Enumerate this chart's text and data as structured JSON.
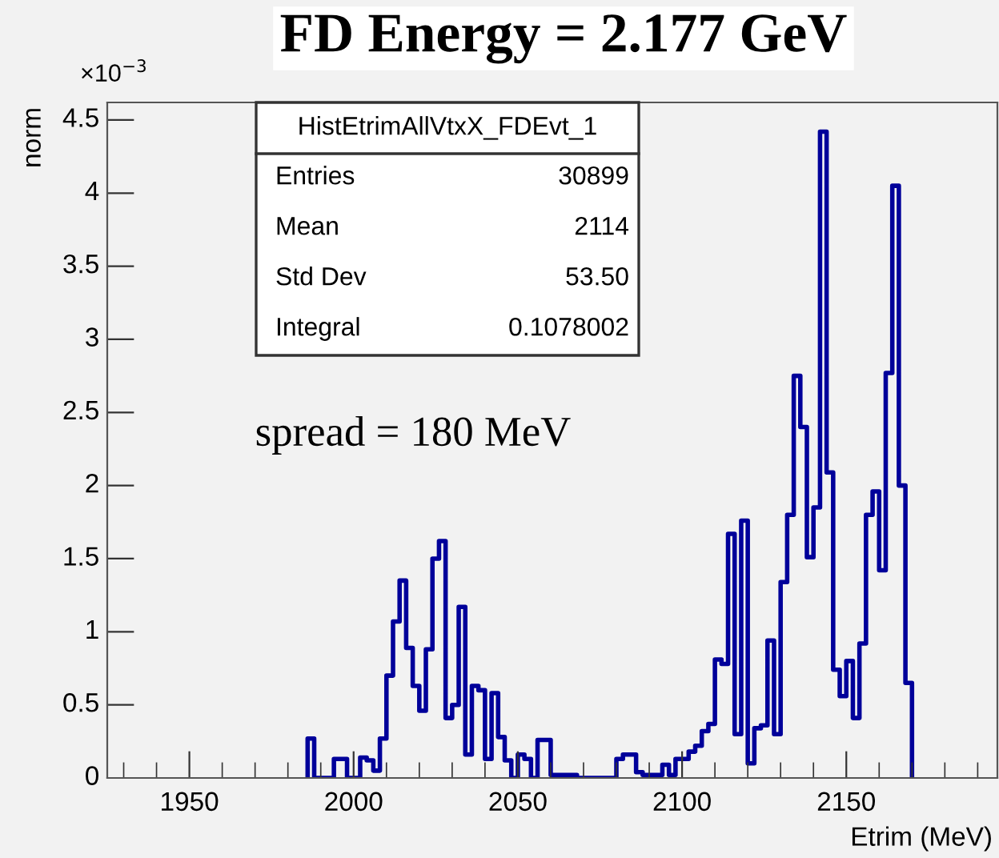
{
  "chart_data": {
    "type": "histogram",
    "title": "FD Energy = 2.177 GeV",
    "xlabel": "Etrim (MeV)",
    "ylabel": "norm",
    "annotations": [
      "×10$^{−3}$",
      "HistEtrimAllVtxX_FDEvt_1",
      "Entries",
      "30899",
      "Mean",
      "2114",
      "Std Dev",
      "53.50",
      "Integral",
      "0.1078002",
      "spread = 180 MeV"
    ],
    "color": "#00009a",
    "bins": [
      1986,
      1988,
      1990,
      1992,
      1994,
      1996,
      1998,
      2000,
      2002,
      2004,
      2006,
      2008,
      2010,
      2012,
      2014,
      2016,
      2018,
      2020,
      2022,
      2024,
      2026,
      2028,
      2030,
      2032,
      2034,
      2036,
      2038,
      2040,
      2042,
      2044,
      2046,
      2048,
      2050,
      2052,
      2054,
      2056,
      2058,
      2060,
      2062,
      2064,
      2066,
      2068,
      2070,
      2072,
      2074,
      2076,
      2078,
      2080,
      2082,
      2084,
      2086,
      2088,
      2090,
      2092,
      2094,
      2096,
      2098,
      2100,
      2102,
      2104,
      2106,
      2108,
      2110,
      2112,
      2114,
      2116,
      2118,
      2120,
      2122,
      2124,
      2126,
      2128,
      2130,
      2132,
      2134,
      2136,
      2138,
      2140,
      2142,
      2144,
      2146,
      2148,
      2150,
      2152,
      2154,
      2156,
      2158,
      2160,
      2162,
      2164,
      2166,
      2168,
      2170
    ],
    "values": [
      0.27,
      0,
      0,
      0,
      0.13,
      0.13,
      0,
      0,
      0.14,
      0.12,
      0.05,
      0.27,
      0.7,
      1.07,
      1.35,
      0.89,
      0.63,
      0.46,
      0.88,
      1.5,
      1.62,
      0.41,
      0.5,
      1.17,
      0.16,
      0.63,
      0.6,
      0.13,
      0.58,
      0.28,
      0.12,
      0,
      0.16,
      0.13,
      0,
      0.26,
      0.26,
      0.02,
      0.02,
      0.02,
      0.02,
      0,
      0,
      0,
      0,
      0,
      0,
      0.13,
      0.16,
      0.16,
      0.04,
      0.02,
      0.02,
      0.02,
      0.09,
      0.02,
      0.13,
      0.13,
      0.18,
      0.22,
      0.32,
      0.37,
      0.81,
      0.78,
      1.67,
      0.3,
      1.76,
      0.1,
      0.34,
      0.36,
      0.94,
      0.3,
      1.34,
      1.8,
      2.75,
      2.4,
      1.51,
      1.85,
      4.42,
      2.09,
      0.74,
      0.56,
      0.8,
      0.41,
      0.92,
      1.8,
      1.96,
      1.42,
      2.77,
      4.05,
      2.0,
      0.65
    ],
    "xlim": [
      1925,
      2196
    ],
    "xticks": [
      {
        "value": 1930,
        "label": null
      },
      {
        "value": 1940,
        "label": null
      },
      1950,
      {
        "value": 1960,
        "label": null
      },
      {
        "value": 1970,
        "label": null
      },
      {
        "value": 1980,
        "label": null
      },
      {
        "value": 1990,
        "label": null
      },
      2000,
      {
        "value": 2010,
        "label": null
      },
      {
        "value": 2020,
        "label": null
      },
      {
        "value": 2030,
        "label": null
      },
      {
        "value": 2040,
        "label": null
      },
      2050,
      {
        "value": 2060,
        "label": null
      },
      {
        "value": 2070,
        "label": null
      },
      {
        "value": 2080,
        "label": null
      },
      {
        "value": 2090,
        "label": null
      },
      2100,
      {
        "value": 2110,
        "label": null
      },
      {
        "value": 2120,
        "label": null
      },
      {
        "value": 2130,
        "label": null
      },
      {
        "value": 2140,
        "label": null
      },
      2150,
      {
        "value": 2160,
        "label": null
      },
      {
        "value": 2170,
        "label": null
      },
      {
        "value": 2180,
        "label": null
      },
      {
        "value": 2190,
        "label": null
      }
    ],
    "ylim": [
      0,
      4.62
    ],
    "yticks": [
      0,
      0.5,
      1,
      1.5,
      2,
      2.5,
      3,
      3.5,
      4,
      4.5
    ],
    "grid": false,
    "legend": false
  }
}
